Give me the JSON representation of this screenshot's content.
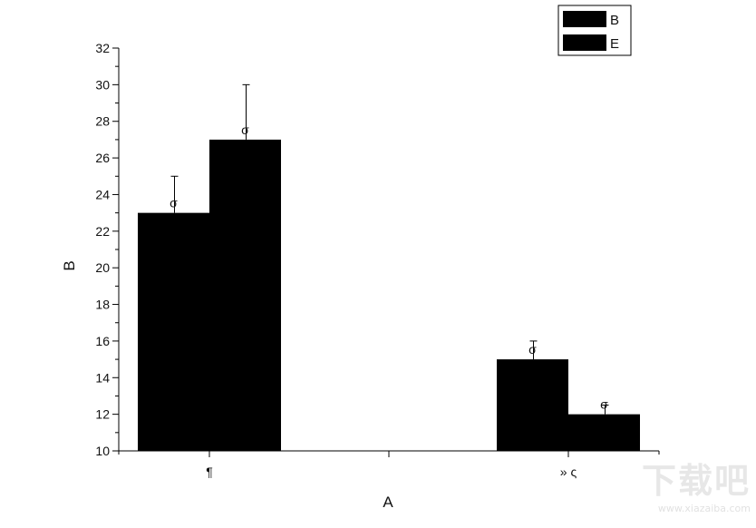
{
  "chart_data": {
    "type": "bar",
    "title": "",
    "xlabel": "A",
    "ylabel": "B",
    "ylim": [
      10,
      32
    ],
    "yticks": [
      10,
      12,
      14,
      16,
      18,
      20,
      22,
      24,
      26,
      28,
      30,
      32
    ],
    "categories": [
      "¶",
      "» ς"
    ],
    "series": [
      {
        "name": "B",
        "values": [
          23,
          15
        ],
        "error_plus": [
          2,
          1
        ],
        "label_glyph": "σ"
      },
      {
        "name": "E",
        "values": [
          27,
          12
        ],
        "error_plus": [
          3,
          0.5
        ],
        "label_glyph": "σ"
      }
    ],
    "bar_color": "#000000",
    "legend_position": "top-right",
    "grid": false
  },
  "watermark": {
    "main": "下载吧",
    "sub": "www.xiazaiba.com"
  }
}
